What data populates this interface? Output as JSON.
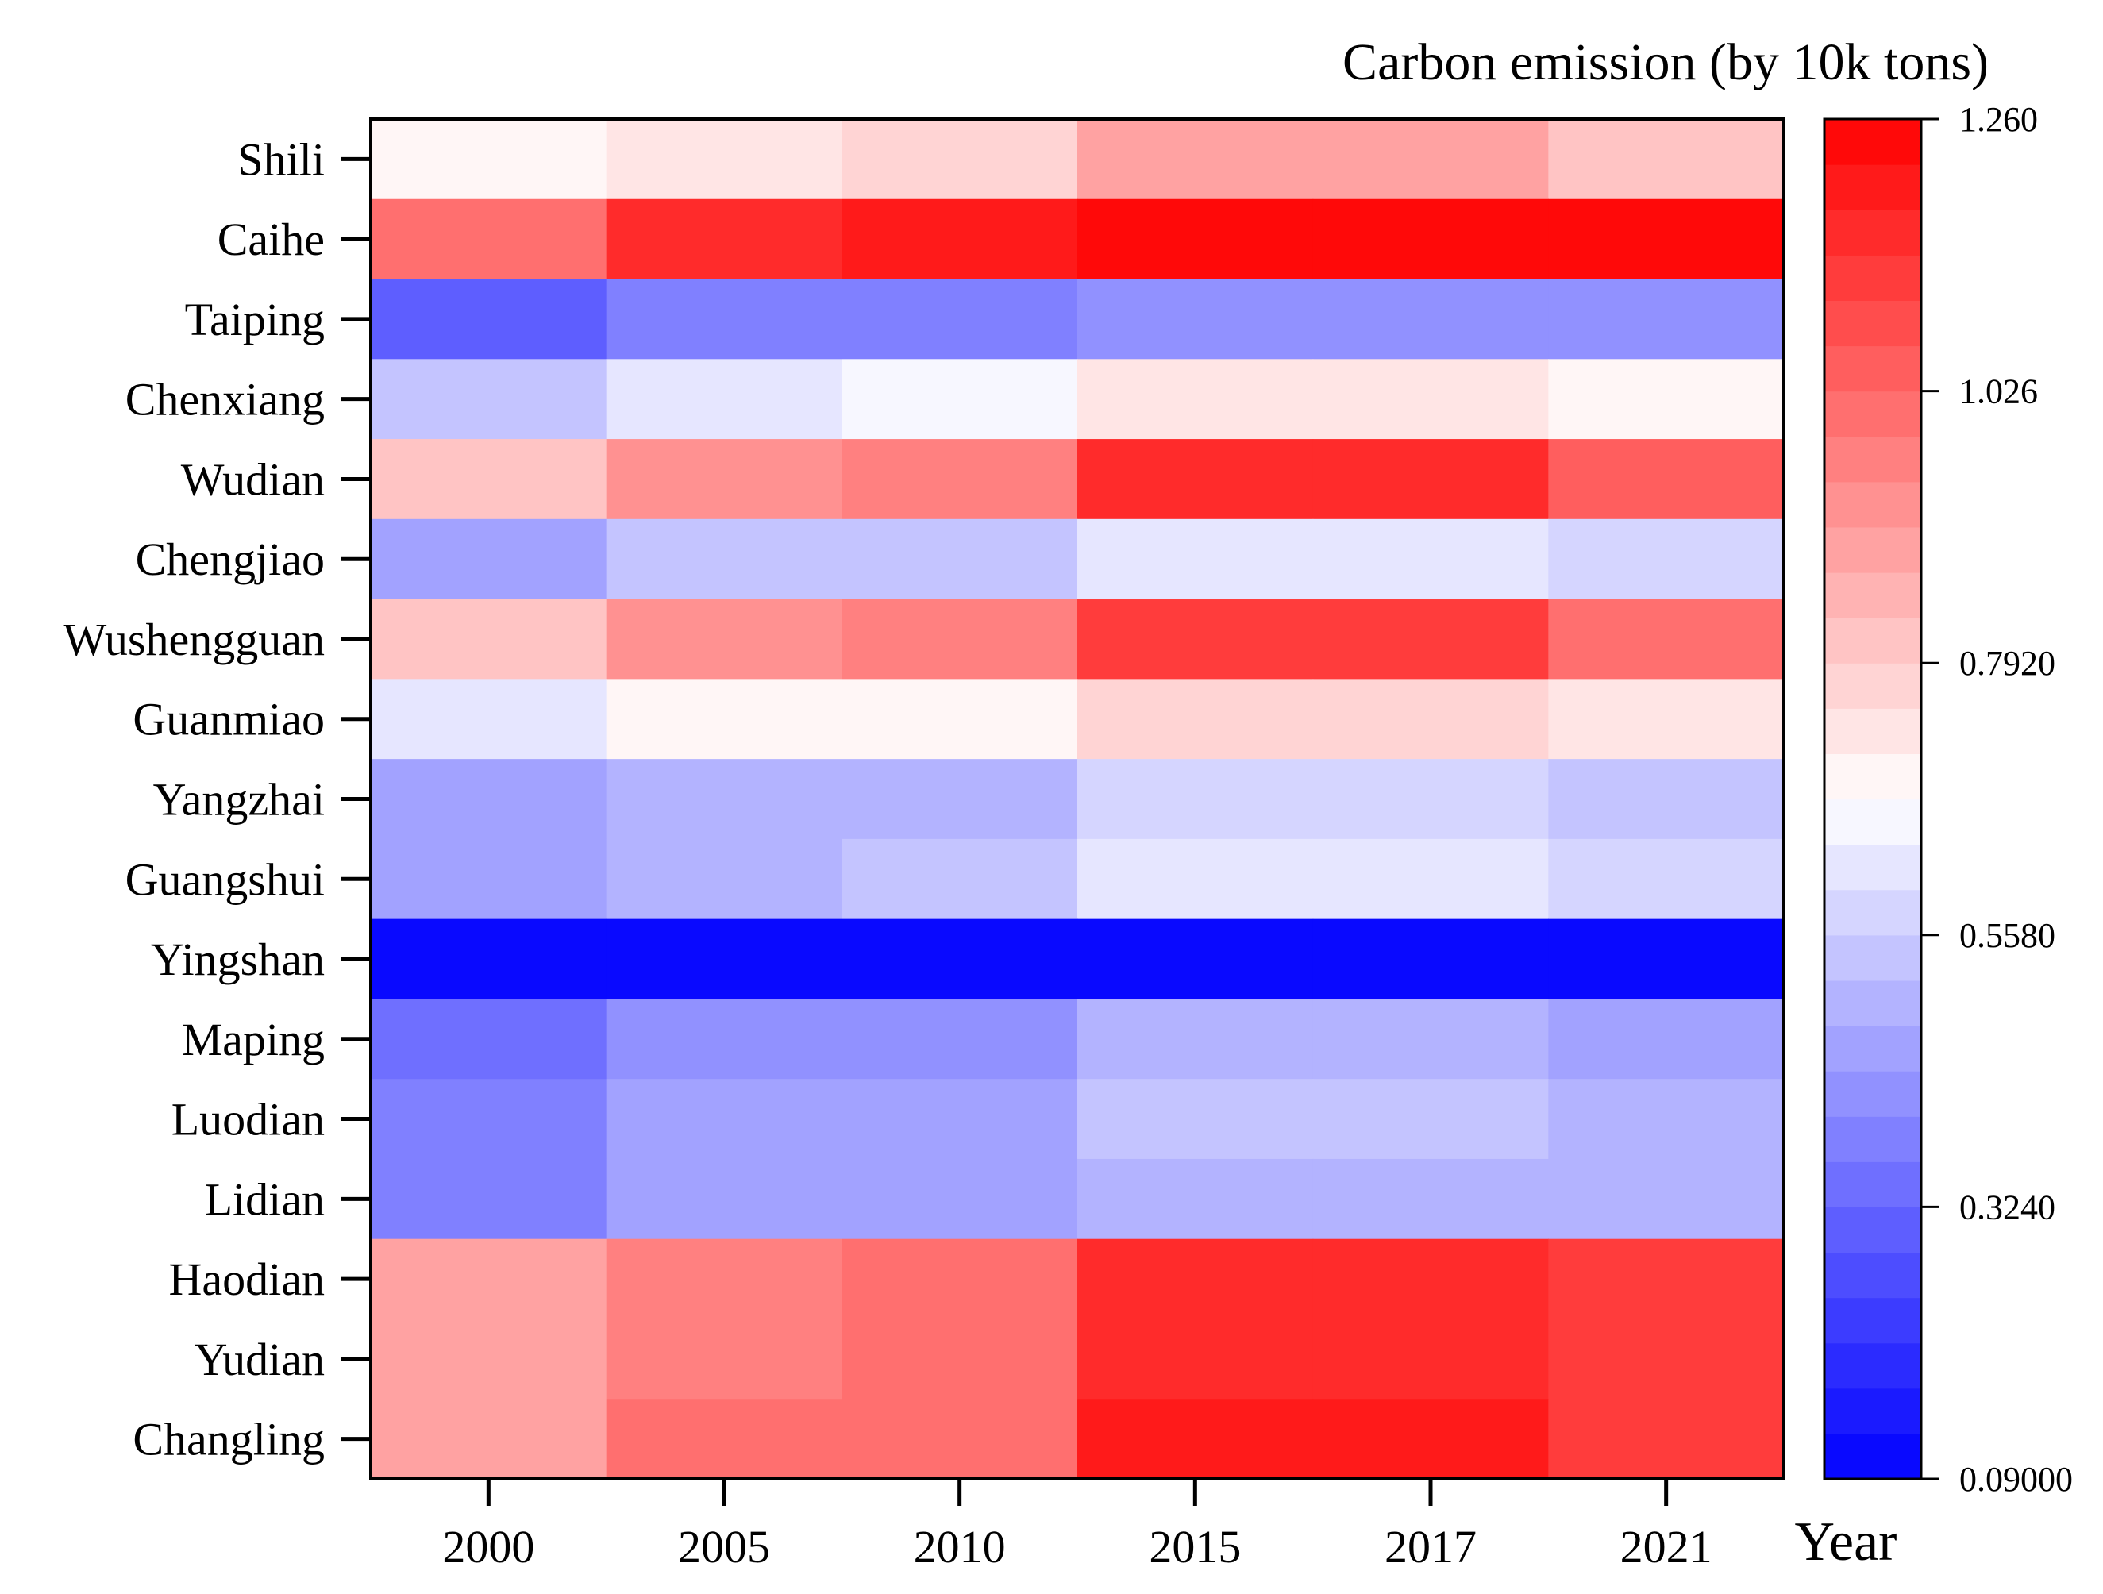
{
  "chart_data": {
    "type": "heatmap",
    "title": "Carbon emission (by 10k tons)",
    "xlabel": "Year",
    "ylabel": "",
    "columns": [
      "2000",
      "2005",
      "2010",
      "2015",
      "2017",
      "2021"
    ],
    "rows": [
      "Shili",
      "Caihe",
      "Taiping",
      "Chenxiang",
      "Wudian",
      "Chengjiao",
      "Wushengguan",
      "Guanmiao",
      "Yangzhai",
      "Guangshui",
      "Yingshan",
      "Maping",
      "Luodian",
      "Lidian",
      "Haodian",
      "Yudian",
      "Changling"
    ],
    "values": [
      [
        0.68,
        0.75,
        0.78,
        0.87,
        0.87,
        0.82
      ],
      [
        0.99,
        1.16,
        1.19,
        1.26,
        1.26,
        1.24
      ],
      [
        0.31,
        0.39,
        0.39,
        0.43,
        0.43,
        0.43
      ],
      [
        0.55,
        0.6,
        0.64,
        0.73,
        0.73,
        0.68
      ],
      [
        0.83,
        0.91,
        0.95,
        1.16,
        1.16,
        1.06
      ],
      [
        0.46,
        0.54,
        0.54,
        0.61,
        0.61,
        0.56
      ],
      [
        0.83,
        0.91,
        0.95,
        1.11,
        1.11,
        1.02
      ],
      [
        0.61,
        0.69,
        0.69,
        0.78,
        0.78,
        0.73
      ],
      [
        0.46,
        0.51,
        0.51,
        0.58,
        0.58,
        0.54
      ],
      [
        0.46,
        0.51,
        0.54,
        0.61,
        0.61,
        0.56
      ],
      [
        0.09,
        0.09,
        0.09,
        0.09,
        0.09,
        0.09
      ],
      [
        0.35,
        0.41,
        0.41,
        0.48,
        0.48,
        0.46
      ],
      [
        0.39,
        0.46,
        0.46,
        0.54,
        0.54,
        0.48
      ],
      [
        0.39,
        0.46,
        0.46,
        0.51,
        0.51,
        0.48
      ],
      [
        0.87,
        0.96,
        0.99,
        1.16,
        1.16,
        1.11
      ],
      [
        0.87,
        0.96,
        0.99,
        1.16,
        1.16,
        1.11
      ],
      [
        0.87,
        0.99,
        0.99,
        1.19,
        1.19,
        1.11
      ]
    ],
    "colorbar": {
      "min": 0.09,
      "max": 1.26,
      "ticks": [
        1.26,
        1.026,
        0.792,
        0.558,
        0.324,
        0.09
      ],
      "tick_labels": [
        "1.260",
        "1.026",
        "0.7920",
        "0.5580",
        "0.3240",
        "0.09000"
      ],
      "low_color": "#0000ff",
      "mid_color": "#ffffff",
      "high_color": "#ff0000",
      "levels": 30
    },
    "grid": false,
    "legend": "right"
  }
}
